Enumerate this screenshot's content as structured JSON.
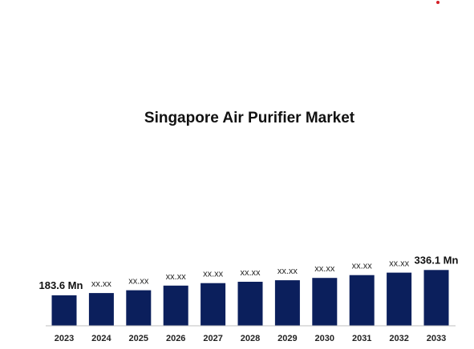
{
  "chart_data": {
    "type": "bar",
    "title": "Singapore Air Purifier Market",
    "categories": [
      "2023",
      "2024",
      "2025",
      "2026",
      "2027",
      "2028",
      "2029",
      "2030",
      "2031",
      "2032",
      "2033"
    ],
    "values": [
      183.6,
      197,
      214,
      242,
      257,
      265,
      274,
      288,
      305,
      320,
      336.1
    ],
    "data_labels": [
      "183.6 Mn",
      "xx.xx",
      "xx.xx",
      "xx.xx",
      "xx.xx",
      "xx.xx",
      "xx.xx",
      "xx.xx",
      "xx.xx",
      "xx.xx",
      "336.1 Mn"
    ],
    "bar_color": "#0b1f5c",
    "grid": false,
    "legend": "none"
  },
  "accent": {
    "corner_dot_color": "#d41f26"
  }
}
